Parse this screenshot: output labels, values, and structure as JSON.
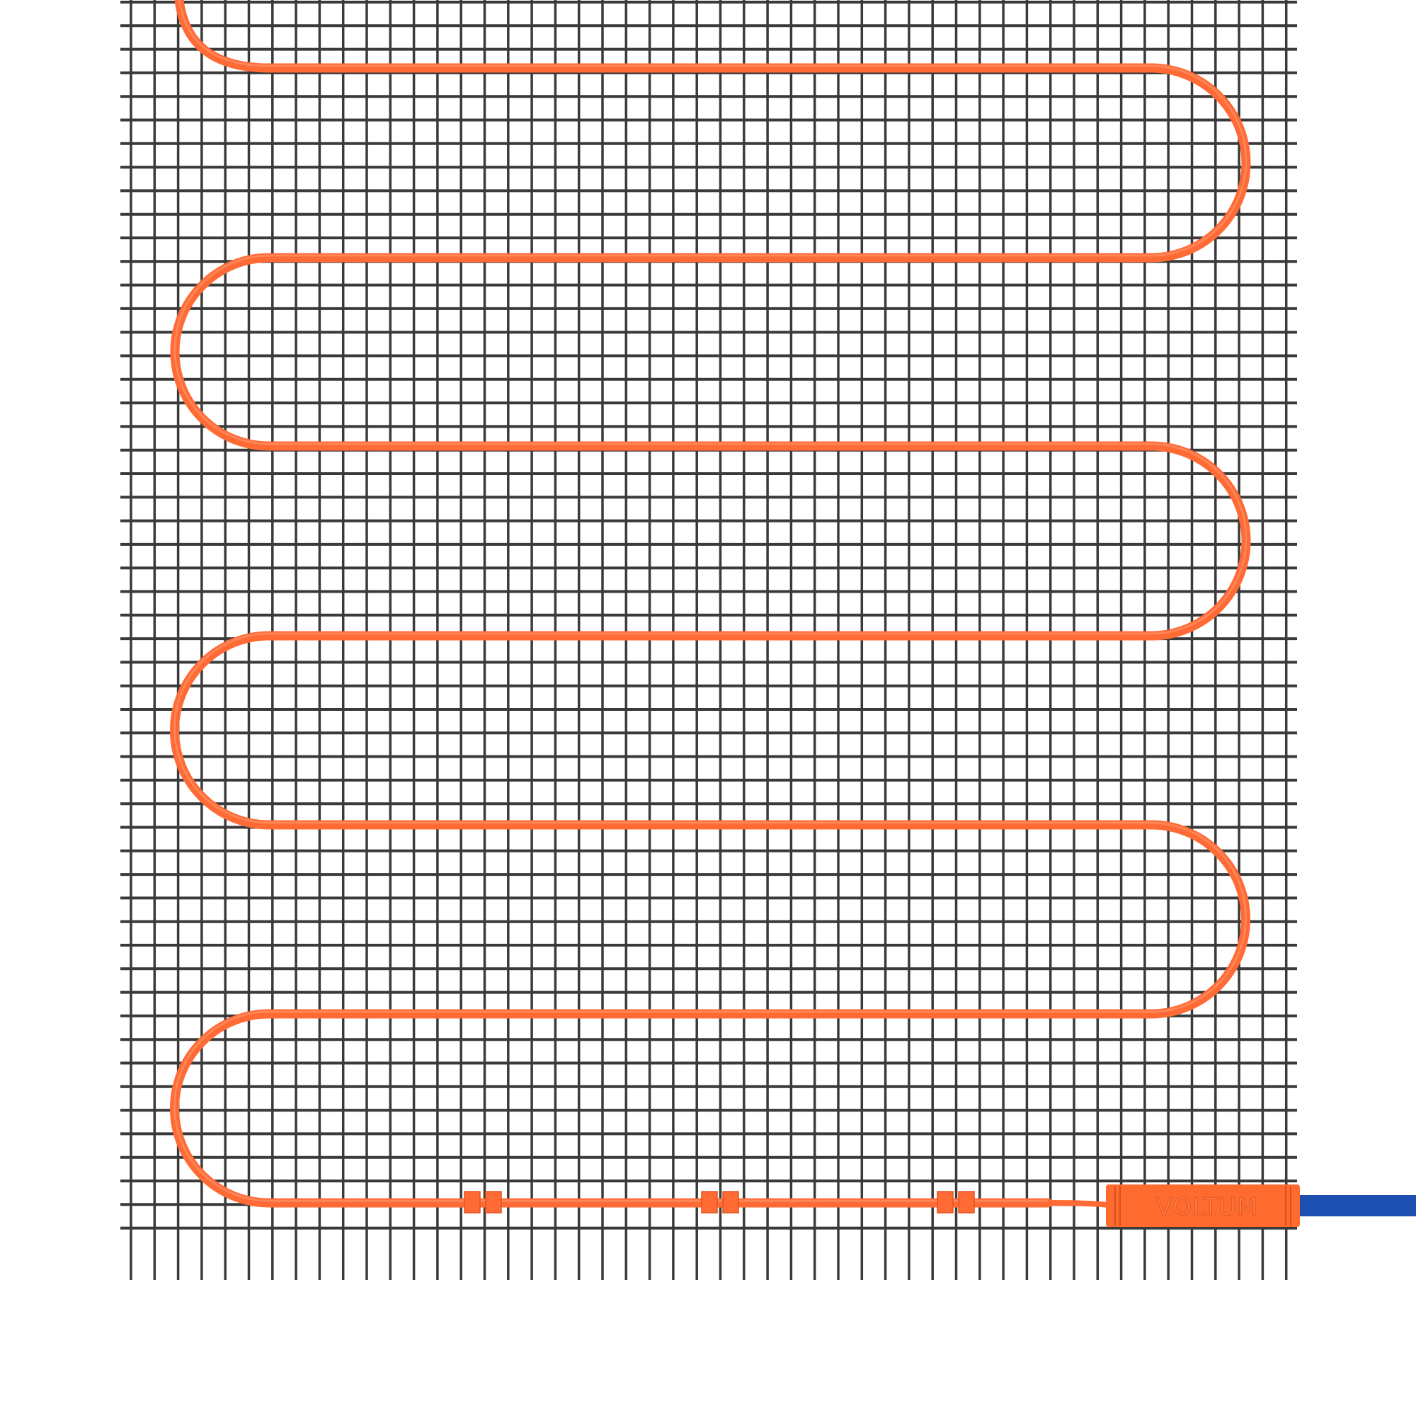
{
  "product": {
    "brand_logo_text": "VOLTUM"
  },
  "colors": {
    "background": "#ffffff",
    "mesh": "#3a3a3a",
    "heating_cable": "#ff6a35",
    "connector": "#ff6a2e",
    "power_cable": "#1c4fb0"
  }
}
